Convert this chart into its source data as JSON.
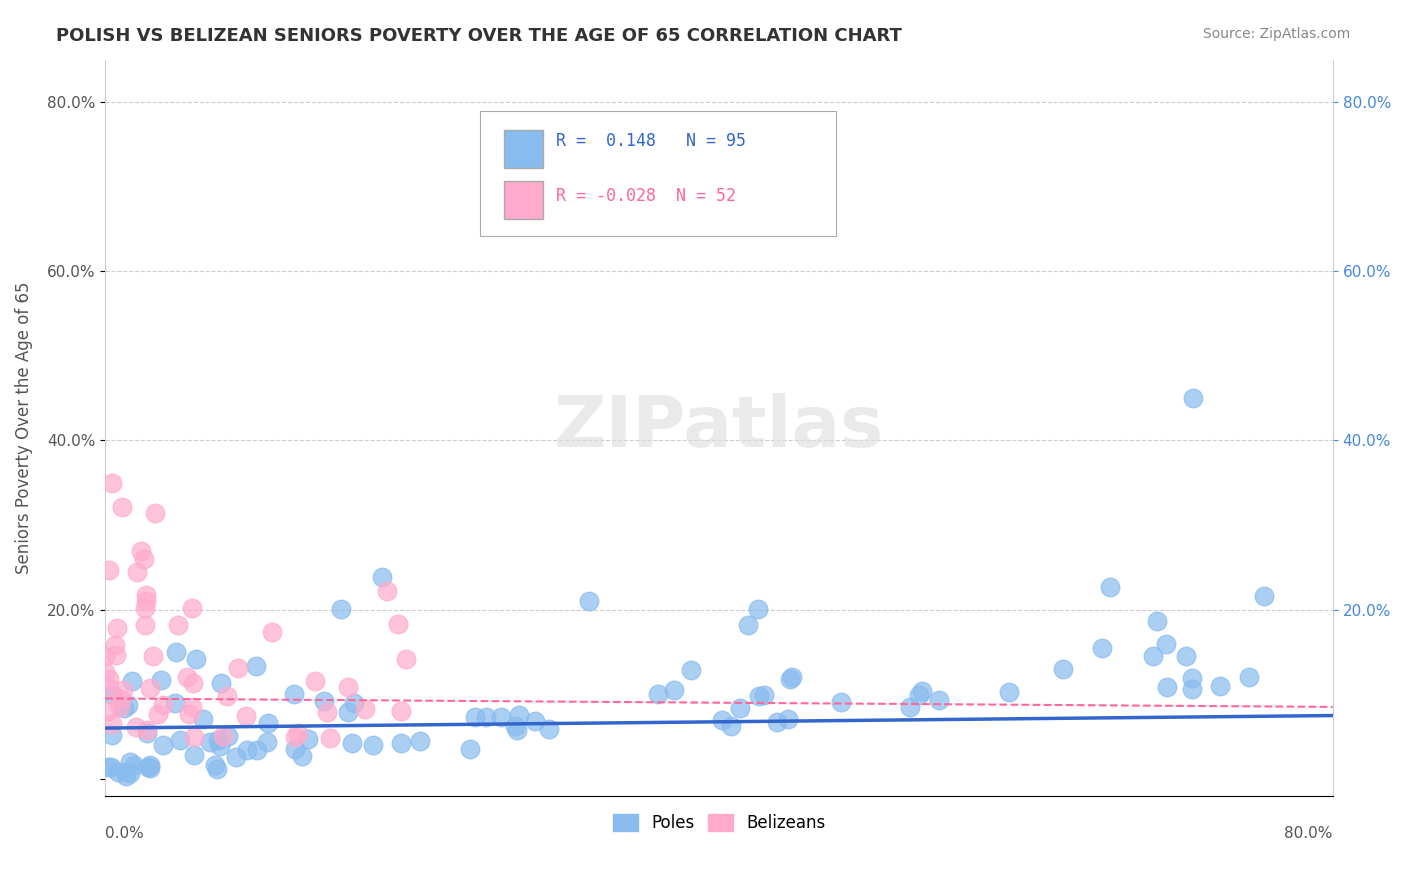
{
  "title": "POLISH VS BELIZEAN SENIORS POVERTY OVER THE AGE OF 65 CORRELATION CHART",
  "source": "Source: ZipAtlas.com",
  "ylabel": "Seniors Poverty Over the Age of 65",
  "xmin": 0.0,
  "xmax": 0.8,
  "ymin": -0.02,
  "ymax": 0.85,
  "r_poles": 0.148,
  "n_poles": 95,
  "r_belizeans": -0.028,
  "n_belizeans": 52,
  "color_poles": "#88bbee",
  "color_belizeans": "#ffaacc",
  "color_trendline_poles": "#3366cc",
  "color_trendline_belizeans": "#ff6699",
  "color_grid": "#cccccc",
  "watermark": "ZIPatlas"
}
